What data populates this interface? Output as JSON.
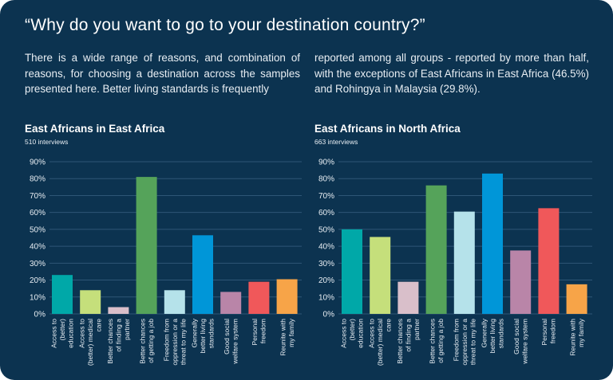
{
  "header": {
    "title": "“Why do you want to go to your destination country?”",
    "paragraph_left": "There is a wide range of reasons, and combination of reasons, for choosing a destination across the samples presented here. Better living standards is frequently",
    "paragraph_right": "reported among all groups - reported by more than half, with the exceptions of East Africans in East Africa (46.5%) and Rohingya in Malaysia (29.8%)."
  },
  "chart_data": [
    {
      "type": "bar",
      "title": "East Africans in East Africa",
      "subtitle": "510 interviews",
      "categories": [
        [
          "Access to",
          "(better)",
          "education"
        ],
        [
          "Access to",
          "(better) medical",
          "care"
        ],
        [
          "Better chances",
          "of finding a",
          "partner"
        ],
        [
          "Better chances",
          "of getting a job"
        ],
        [
          "Freedom from",
          "oppression or a",
          "threat to my life"
        ],
        [
          "Generally",
          "better living",
          "standards"
        ],
        [
          "Good social",
          "welfare system"
        ],
        [
          "Personal",
          "freedom"
        ],
        [
          "Reunite with",
          "my family"
        ]
      ],
      "values": [
        23,
        14,
        4,
        81,
        14,
        46.5,
        13,
        19,
        20.5
      ],
      "colors": [
        "#00a8a8",
        "#c5df7b",
        "#d9bfca",
        "#55a35a",
        "#b5e2ea",
        "#0096d8",
        "#b985a8",
        "#f0585a",
        "#f7a448"
      ],
      "yticks": [
        "0%",
        "10%",
        "20%",
        "30%",
        "40%",
        "50%",
        "60%",
        "70%",
        "80%",
        "90%"
      ],
      "ylim": [
        0,
        90
      ]
    },
    {
      "type": "bar",
      "title": "East Africans in North Africa",
      "subtitle": "663 interviews",
      "categories": [
        [
          "Access to",
          "(better)",
          "education"
        ],
        [
          "Access to",
          "(better) medical",
          "care"
        ],
        [
          "Better chances",
          "of finding a",
          "partner"
        ],
        [
          "Better chances",
          "of getting a job"
        ],
        [
          "Freedom from",
          "oppression or a",
          "threat to my life"
        ],
        [
          "Generally",
          "better living",
          "standards"
        ],
        [
          "Good social",
          "welfare system"
        ],
        [
          "Personal",
          "freedom"
        ],
        [
          "Reunite with",
          "my family"
        ]
      ],
      "values": [
        50,
        45.5,
        19,
        76,
        60.5,
        83,
        37.5,
        62.5,
        17.5
      ],
      "colors": [
        "#00a8a8",
        "#c5df7b",
        "#d9bfca",
        "#55a35a",
        "#b5e2ea",
        "#0096d8",
        "#b985a8",
        "#f0585a",
        "#f7a448"
      ],
      "yticks": [
        "0%",
        "10%",
        "20%",
        "30%",
        "40%",
        "50%",
        "60%",
        "70%",
        "80%",
        "90%"
      ],
      "ylim": [
        0,
        90
      ]
    }
  ]
}
